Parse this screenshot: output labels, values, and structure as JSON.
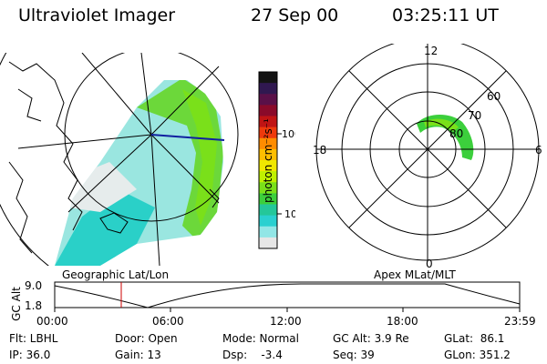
{
  "header": {
    "instrument": "Ultraviolet Imager",
    "date": "27 Sep 00",
    "time": "03:25:11 UT"
  },
  "panels": {
    "geographic_label": "Geographic Lat/Lon",
    "apex_label": "Apex MLat/MLT"
  },
  "apex_labels": {
    "mlt_top": "12",
    "mlt_left": "18",
    "mlt_right": "6",
    "mlt_bottom": "0",
    "lat_60": "60",
    "lat_70": "70",
    "lat_80": "80"
  },
  "colorbar": {
    "unit": "photon cm⁻²s⁻¹",
    "ticks": [
      "100",
      "10"
    ],
    "colors": [
      "#141414",
      "#301850",
      "#5a1048",
      "#8a0a2a",
      "#c01414",
      "#ee3a0c",
      "#ff8c00",
      "#ffbe00",
      "#f0e800",
      "#c0f000",
      "#7ae01a",
      "#3ccf3c",
      "#24c79a",
      "#2ad0d0",
      "#92e6e6",
      "#e6e6e6"
    ]
  },
  "timeline": {
    "ylabel": "GC Alt",
    "yticks": [
      "9.0",
      "1.8"
    ],
    "xticks": [
      "00:00",
      "06:00",
      "12:00",
      "18:00",
      "23:59"
    ]
  },
  "status": {
    "filter": "Flt: LBHL",
    "ip": "IP: 36.0",
    "door": "Door: Open",
    "gain": "Gain: 13",
    "mode": "Mode: Normal",
    "dsp": "Dsp:    -3.4",
    "gcalt": "GC Alt: 3.9 Re",
    "seq": "Seq: 39",
    "glat": "GLat:  86.1",
    "glon": "GLon: 351.2"
  }
}
